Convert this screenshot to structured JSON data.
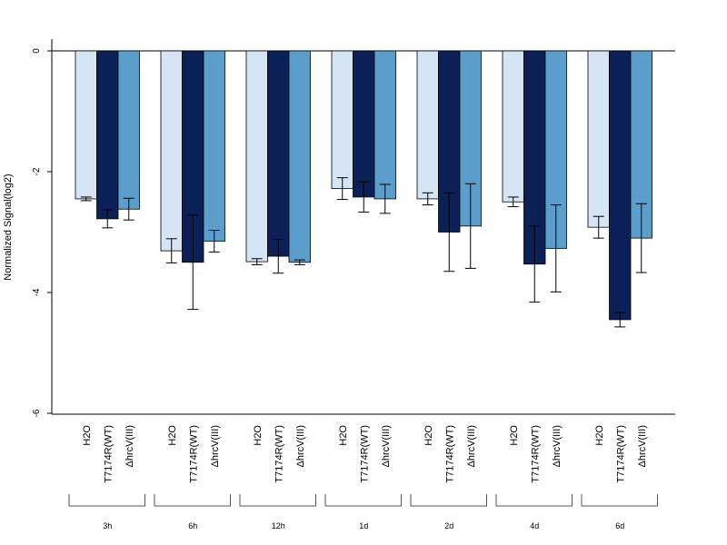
{
  "chart_data": {
    "type": "bar",
    "ylabel": "Normalized Signal(log2)",
    "ylim": [
      -6,
      0.2
    ],
    "yticks": [
      0,
      -2,
      -4,
      -6
    ],
    "yticklabels": [
      "0",
      "-2",
      "-4",
      "-6"
    ],
    "series_labels": [
      "H2O",
      "T7174R(WT)",
      "ΔhrcV(III)"
    ],
    "colors": [
      "#d6e5f5",
      "#0a2057",
      "#5b9ecc"
    ],
    "groups": [
      {
        "label": "3h",
        "values": [
          -2.45,
          -2.78,
          -2.62
        ],
        "errors": [
          0.03,
          0.15,
          0.18
        ]
      },
      {
        "label": "6h",
        "values": [
          -3.31,
          -3.5,
          -3.15
        ],
        "errors": [
          0.2,
          0.78,
          0.18
        ]
      },
      {
        "label": "12h",
        "values": [
          -3.49,
          -3.4,
          -3.5
        ],
        "errors": [
          0.05,
          0.28,
          0.04
        ]
      },
      {
        "label": "1d",
        "values": [
          -2.28,
          -2.42,
          -2.45
        ],
        "errors": [
          0.18,
          0.25,
          0.24
        ]
      },
      {
        "label": "2d",
        "values": [
          -2.45,
          -3.0,
          -2.9
        ],
        "errors": [
          0.1,
          0.65,
          0.7
        ]
      },
      {
        "label": "4d",
        "values": [
          -2.5,
          -3.53,
          -3.27
        ],
        "errors": [
          0.08,
          0.63,
          0.72
        ]
      },
      {
        "label": "6d",
        "values": [
          -2.92,
          -4.45,
          -3.1
        ],
        "errors": [
          0.18,
          0.12,
          0.57
        ]
      }
    ]
  }
}
